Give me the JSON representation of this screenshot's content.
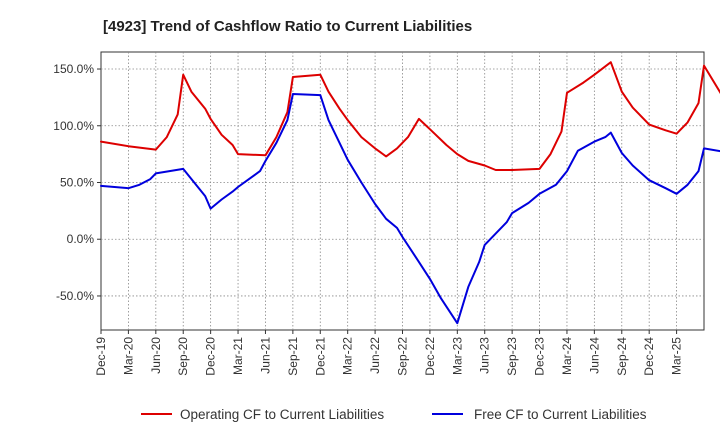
{
  "chart_data": {
    "type": "line",
    "title": "[4923]  Trend of Cashflow Ratio to Current Liabilities",
    "xlabel": "",
    "ylabel": "",
    "ylim": [
      -80,
      165
    ],
    "yticks": [
      150,
      100,
      50,
      0,
      -50
    ],
    "ytick_labels": [
      "150.0%",
      "100.0%",
      "50.0%",
      "0.0%",
      "-50.0%"
    ],
    "x_tick_labels": [
      "Dec-19",
      "Mar-20",
      "Jun-20",
      "Sep-20",
      "Dec-20",
      "Mar-21",
      "Jun-21",
      "Sep-21",
      "Dec-21",
      "Mar-22",
      "Jun-22",
      "Sep-22",
      "Dec-22",
      "Mar-23",
      "Jun-23",
      "Sep-23",
      "Dec-23",
      "Mar-24",
      "Jun-24",
      "Sep-24",
      "Dec-24",
      "Mar-25"
    ],
    "grid": true,
    "legend_position": "bottom",
    "series": [
      {
        "name": "Operating CF to Current Liabilities",
        "color": "#dd0000",
        "points": [
          [
            0,
            86
          ],
          [
            1,
            82
          ],
          [
            2,
            79
          ],
          [
            2.4,
            90
          ],
          [
            2.8,
            110
          ],
          [
            3,
            145
          ],
          [
            3.3,
            130
          ],
          [
            3.8,
            115
          ],
          [
            4,
            106
          ],
          [
            4.4,
            92
          ],
          [
            4.8,
            83
          ],
          [
            5,
            75
          ],
          [
            6,
            74
          ],
          [
            6.4,
            90
          ],
          [
            6.8,
            112
          ],
          [
            7,
            143
          ],
          [
            8,
            145
          ],
          [
            8.3,
            130
          ],
          [
            8.7,
            115
          ],
          [
            9,
            105
          ],
          [
            9.5,
            90
          ],
          [
            10,
            80
          ],
          [
            10.4,
            73
          ],
          [
            10.8,
            80
          ],
          [
            11.2,
            90
          ],
          [
            11.6,
            106
          ],
          [
            12,
            97
          ],
          [
            12.6,
            83
          ],
          [
            13,
            75
          ],
          [
            13.4,
            69
          ],
          [
            14,
            65
          ],
          [
            14.4,
            61
          ],
          [
            15,
            61
          ],
          [
            16,
            62
          ],
          [
            16.4,
            75
          ],
          [
            16.8,
            95
          ],
          [
            17,
            129
          ],
          [
            17.6,
            138
          ],
          [
            18,
            145
          ],
          [
            18.6,
            156
          ],
          [
            19,
            130
          ],
          [
            19.4,
            116
          ],
          [
            20,
            101
          ],
          [
            20.6,
            96
          ],
          [
            21,
            93
          ],
          [
            21.4,
            103
          ],
          [
            21.8,
            120
          ],
          [
            22,
            153
          ],
          [
            23,
            113
          ]
        ]
      },
      {
        "name": "Free CF to Current Liabilities",
        "color": "#0000dd",
        "points": [
          [
            0,
            47
          ],
          [
            1,
            45
          ],
          [
            1.4,
            48
          ],
          [
            1.8,
            53
          ],
          [
            2,
            58
          ],
          [
            3,
            62
          ],
          [
            3.4,
            50
          ],
          [
            3.8,
            38
          ],
          [
            4,
            27
          ],
          [
            4.4,
            35
          ],
          [
            4.8,
            42
          ],
          [
            5,
            46
          ],
          [
            5.4,
            53
          ],
          [
            5.8,
            60
          ],
          [
            6,
            69
          ],
          [
            6.4,
            85
          ],
          [
            6.8,
            105
          ],
          [
            7,
            128
          ],
          [
            8,
            127
          ],
          [
            8.3,
            105
          ],
          [
            8.7,
            85
          ],
          [
            9,
            70
          ],
          [
            9.5,
            50
          ],
          [
            10,
            31
          ],
          [
            10.4,
            18
          ],
          [
            10.8,
            10
          ],
          [
            11,
            2
          ],
          [
            11.6,
            -20
          ],
          [
            12,
            -35
          ],
          [
            12.4,
            -52
          ],
          [
            13,
            -74
          ],
          [
            13.4,
            -42
          ],
          [
            13.8,
            -20
          ],
          [
            14,
            -5
          ],
          [
            14.4,
            5
          ],
          [
            14.8,
            15
          ],
          [
            15,
            23
          ],
          [
            15.6,
            32
          ],
          [
            16,
            40
          ],
          [
            16.6,
            48
          ],
          [
            17,
            60
          ],
          [
            17.4,
            78
          ],
          [
            18,
            86
          ],
          [
            18.4,
            90
          ],
          [
            18.6,
            94
          ],
          [
            19,
            76
          ],
          [
            19.4,
            65
          ],
          [
            20,
            52
          ],
          [
            20.6,
            45
          ],
          [
            21,
            40
          ],
          [
            21.4,
            48
          ],
          [
            21.8,
            60
          ],
          [
            22,
            80
          ],
          [
            23,
            76
          ]
        ]
      }
    ]
  }
}
